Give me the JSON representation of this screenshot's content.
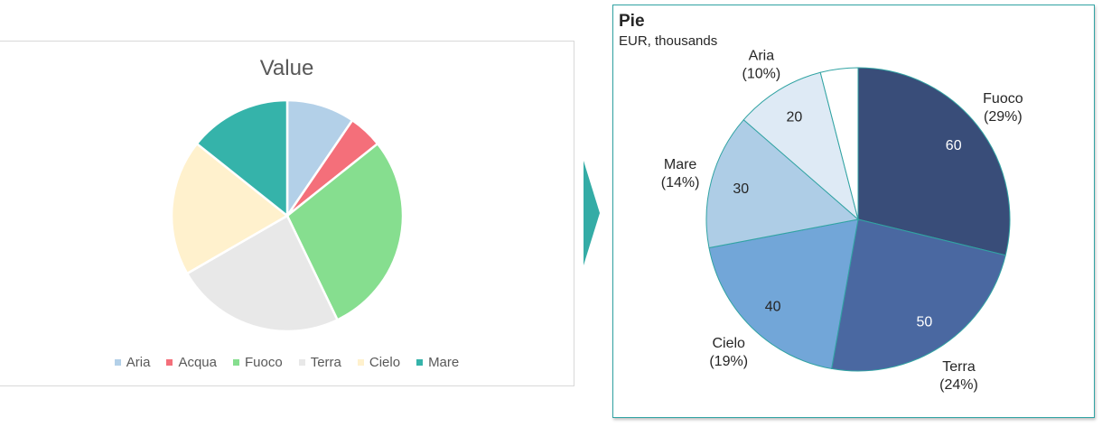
{
  "chart_data": [
    {
      "type": "pie",
      "title": "Value",
      "categories": [
        "Aria",
        "Acqua",
        "Fuoco",
        "Terra",
        "Cielo",
        "Mare"
      ],
      "values": [
        20,
        10,
        60,
        50,
        40,
        30
      ],
      "colors": [
        "#b3d0e8",
        "#f46f7a",
        "#86de8f",
        "#e8e8e8",
        "#fff1cd",
        "#35b3aa"
      ],
      "legend": "bottom"
    },
    {
      "type": "pie",
      "title": "Pie",
      "subtitle": "EUR, thousands",
      "categories": [
        "Fuoco",
        "Terra",
        "Cielo",
        "Mare",
        "Aria"
      ],
      "values": [
        60,
        50,
        40,
        30,
        20
      ],
      "percent_labels": [
        "(29%)",
        "(24%)",
        "(19%)",
        "(14%)",
        "(10%)"
      ],
      "colors": [
        "#394d79",
        "#4a68a1",
        "#72a6d8",
        "#aecde6",
        "#deeaf5",
        "#ffffff"
      ],
      "border_color": "#31a3a3"
    }
  ]
}
